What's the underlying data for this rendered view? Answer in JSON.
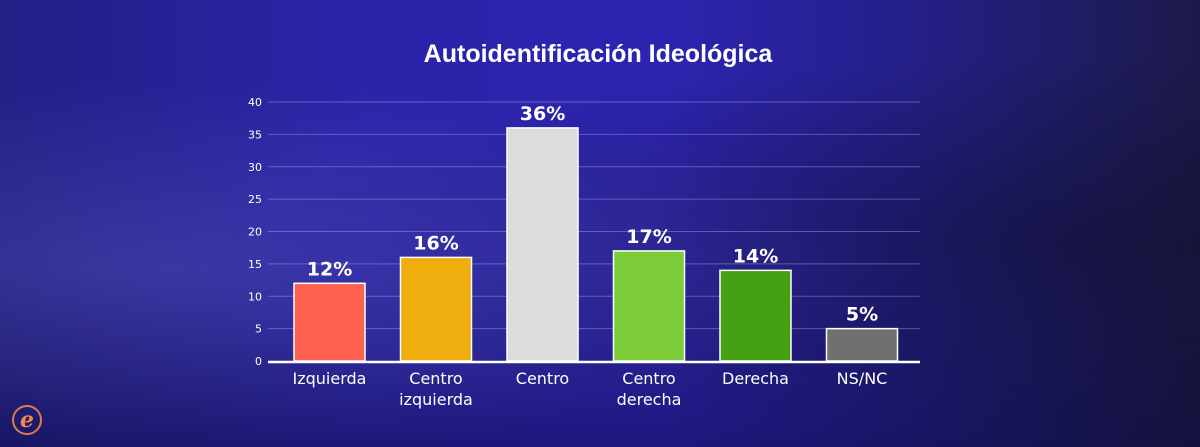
{
  "chart_data": {
    "type": "bar",
    "title": "Autoidentificación Ideológica",
    "xlabel": "",
    "ylabel": "",
    "ylim": [
      0,
      40
    ],
    "yticks": [
      0,
      5,
      10,
      15,
      20,
      25,
      30,
      35,
      40
    ],
    "grid": true,
    "categories": [
      [
        "Izquierda"
      ],
      [
        "Centro",
        "izquierda"
      ],
      [
        "Centro"
      ],
      [
        "Centro",
        "derecha"
      ],
      [
        "Derecha"
      ],
      [
        "NS/NC"
      ]
    ],
    "values": [
      12,
      16,
      36,
      17,
      14,
      5
    ],
    "data_labels": [
      "12%",
      "16%",
      "36%",
      "17%",
      "14%",
      "5%"
    ],
    "colors": [
      "#ff6150",
      "#f0ae0e",
      "#dcdcdc",
      "#7ccc3a",
      "#45a012",
      "#707070"
    ]
  },
  "logo": {
    "letter": "e"
  }
}
